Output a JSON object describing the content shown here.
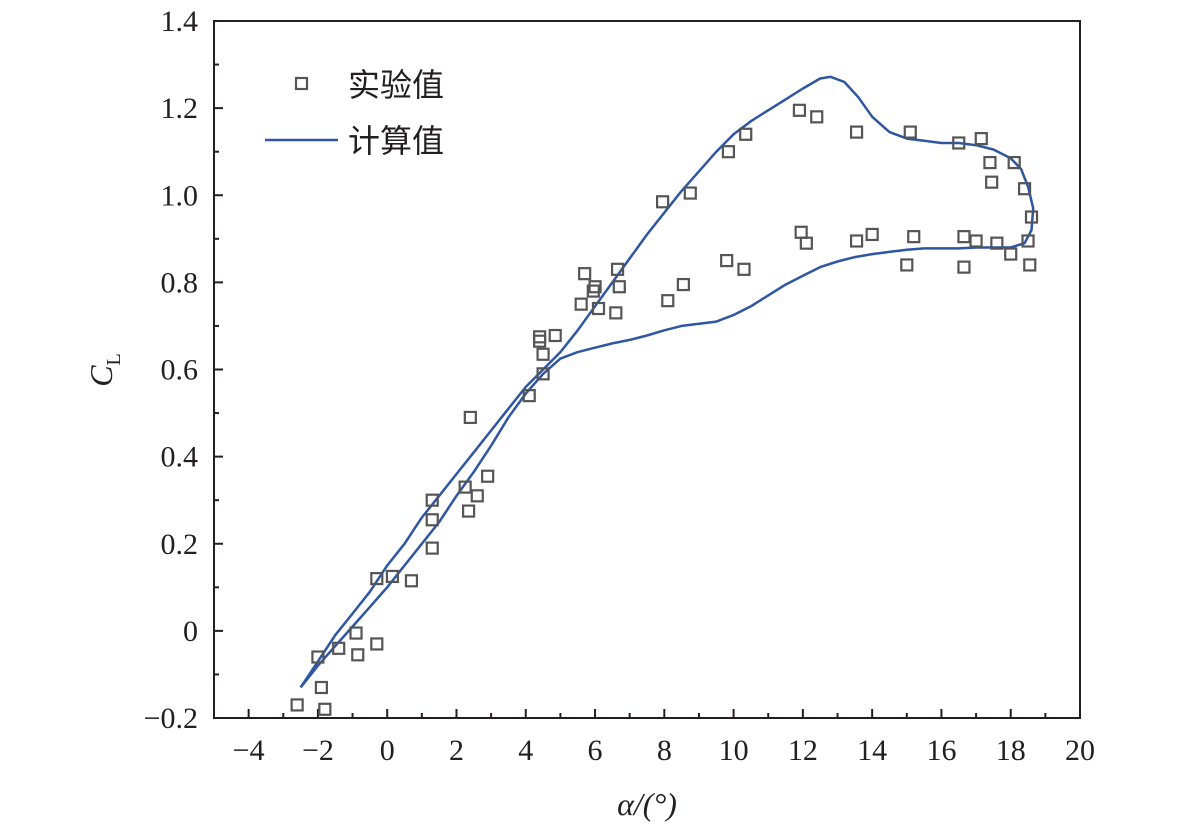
{
  "chart_data": {
    "type": "scatter",
    "xlabel": "α/(°)",
    "ylabel": {
      "main": "C",
      "sub": "L"
    },
    "xlim": [
      -5,
      20
    ],
    "ylim": [
      -0.2,
      1.4
    ],
    "x_ticks": [
      -4,
      -2,
      0,
      2,
      4,
      6,
      8,
      10,
      12,
      14,
      16,
      18,
      20
    ],
    "x_tick_labels": [
      "−4",
      "−2",
      "0",
      "2",
      "4",
      "6",
      "8",
      "10",
      "12",
      "14",
      "16",
      "18",
      "20"
    ],
    "y_ticks": [
      -0.2,
      0,
      0.2,
      0.4,
      0.6,
      0.8,
      1.0,
      1.2,
      1.4
    ],
    "y_tick_labels": [
      "−0.2",
      "0",
      "0.2",
      "0.4",
      "0.6",
      "0.8",
      "1.0",
      "1.2",
      "1.4"
    ],
    "grid": false,
    "legend_position": "top-left",
    "series": [
      {
        "name": "实验值",
        "kind": "scatter",
        "marker": "open-square",
        "color": "#555555",
        "points": [
          [
            -2.6,
            -0.17
          ],
          [
            -2.0,
            -0.06
          ],
          [
            -1.9,
            -0.13
          ],
          [
            -1.8,
            -0.18
          ],
          [
            -1.4,
            -0.04
          ],
          [
            -0.9,
            -0.005
          ],
          [
            -0.85,
            -0.055
          ],
          [
            -0.3,
            -0.03
          ],
          [
            -0.3,
            0.12
          ],
          [
            0.15,
            0.125
          ],
          [
            0.7,
            0.115
          ],
          [
            1.3,
            0.19
          ],
          [
            1.3,
            0.255
          ],
          [
            1.3,
            0.3
          ],
          [
            2.25,
            0.33
          ],
          [
            2.35,
            0.275
          ],
          [
            2.4,
            0.49
          ],
          [
            2.6,
            0.31
          ],
          [
            2.9,
            0.355
          ],
          [
            4.1,
            0.54
          ],
          [
            4.4,
            0.665
          ],
          [
            4.4,
            0.675
          ],
          [
            4.5,
            0.59
          ],
          [
            4.5,
            0.635
          ],
          [
            4.85,
            0.678
          ],
          [
            5.6,
            0.75
          ],
          [
            5.7,
            0.82
          ],
          [
            5.95,
            0.78
          ],
          [
            6.0,
            0.79
          ],
          [
            6.1,
            0.74
          ],
          [
            6.6,
            0.73
          ],
          [
            6.65,
            0.83
          ],
          [
            6.7,
            0.79
          ],
          [
            7.95,
            0.985
          ],
          [
            8.1,
            0.758
          ],
          [
            8.55,
            0.795
          ],
          [
            8.75,
            1.005
          ],
          [
            9.8,
            0.85
          ],
          [
            9.85,
            1.1
          ],
          [
            10.3,
            0.83
          ],
          [
            10.35,
            1.14
          ],
          [
            11.9,
            1.195
          ],
          [
            11.95,
            0.915
          ],
          [
            12.1,
            0.89
          ],
          [
            12.4,
            1.18
          ],
          [
            13.55,
            0.895
          ],
          [
            13.55,
            1.145
          ],
          [
            14.0,
            0.91
          ],
          [
            15.0,
            0.84
          ],
          [
            15.1,
            1.145
          ],
          [
            15.2,
            0.905
          ],
          [
            16.5,
            1.12
          ],
          [
            16.65,
            0.905
          ],
          [
            16.65,
            0.835
          ],
          [
            17.0,
            0.895
          ],
          [
            17.15,
            1.13
          ],
          [
            17.4,
            1.075
          ],
          [
            17.45,
            1.03
          ],
          [
            17.6,
            0.89
          ],
          [
            18.0,
            0.865
          ],
          [
            18.1,
            1.075
          ],
          [
            18.4,
            1.015
          ],
          [
            18.5,
            0.895
          ],
          [
            18.55,
            0.84
          ],
          [
            18.6,
            0.95
          ]
        ]
      },
      {
        "name": "计算值",
        "kind": "line",
        "color": "#2e56a3",
        "points": [
          [
            -2.5,
            -0.13
          ],
          [
            -2.0,
            -0.07
          ],
          [
            -1.5,
            -0.01
          ],
          [
            -1.0,
            0.04
          ],
          [
            -0.5,
            0.09
          ],
          [
            0.0,
            0.15
          ],
          [
            0.5,
            0.2
          ],
          [
            1.0,
            0.26
          ],
          [
            1.5,
            0.31
          ],
          [
            2.0,
            0.36
          ],
          [
            2.5,
            0.41
          ],
          [
            3.0,
            0.46
          ],
          [
            3.5,
            0.51
          ],
          [
            4.0,
            0.56
          ],
          [
            4.5,
            0.6
          ],
          [
            5.0,
            0.64
          ],
          [
            5.5,
            0.69
          ],
          [
            6.0,
            0.745
          ],
          [
            6.5,
            0.8
          ],
          [
            7.0,
            0.855
          ],
          [
            7.5,
            0.91
          ],
          [
            8.0,
            0.96
          ],
          [
            8.5,
            1.01
          ],
          [
            9.0,
            1.055
          ],
          [
            9.5,
            1.1
          ],
          [
            10.0,
            1.14
          ],
          [
            10.5,
            1.17
          ],
          [
            11.0,
            1.195
          ],
          [
            11.5,
            1.22
          ],
          [
            12.0,
            1.245
          ],
          [
            12.5,
            1.268
          ],
          [
            12.8,
            1.272
          ],
          [
            13.2,
            1.26
          ],
          [
            13.6,
            1.225
          ],
          [
            14.0,
            1.18
          ],
          [
            14.5,
            1.145
          ],
          [
            15.0,
            1.13
          ],
          [
            15.5,
            1.125
          ],
          [
            16.0,
            1.12
          ],
          [
            16.5,
            1.12
          ],
          [
            17.0,
            1.115
          ],
          [
            17.5,
            1.105
          ],
          [
            18.0,
            1.085
          ],
          [
            18.3,
            1.06
          ],
          [
            18.5,
            1.02
          ],
          [
            18.65,
            0.97
          ],
          [
            18.6,
            0.92
          ],
          [
            18.4,
            0.89
          ],
          [
            18.0,
            0.88
          ],
          [
            17.5,
            0.88
          ],
          [
            17.0,
            0.88
          ],
          [
            16.5,
            0.878
          ],
          [
            16.0,
            0.878
          ],
          [
            15.5,
            0.878
          ],
          [
            15.0,
            0.875
          ],
          [
            14.5,
            0.87
          ],
          [
            14.0,
            0.865
          ],
          [
            13.5,
            0.858
          ],
          [
            13.0,
            0.848
          ],
          [
            12.5,
            0.835
          ],
          [
            12.0,
            0.815
          ],
          [
            11.5,
            0.795
          ],
          [
            11.0,
            0.77
          ],
          [
            10.5,
            0.745
          ],
          [
            10.0,
            0.725
          ],
          [
            9.5,
            0.71
          ],
          [
            9.0,
            0.705
          ],
          [
            8.5,
            0.7
          ],
          [
            8.0,
            0.69
          ],
          [
            7.5,
            0.678
          ],
          [
            7.0,
            0.668
          ],
          [
            6.5,
            0.66
          ],
          [
            6.0,
            0.65
          ],
          [
            5.5,
            0.64
          ],
          [
            5.0,
            0.625
          ],
          [
            4.5,
            0.59
          ],
          [
            4.0,
            0.545
          ],
          [
            3.5,
            0.49
          ],
          [
            3.0,
            0.425
          ],
          [
            2.5,
            0.365
          ],
          [
            2.0,
            0.31
          ],
          [
            1.5,
            0.25
          ],
          [
            1.0,
            0.2
          ],
          [
            0.5,
            0.15
          ],
          [
            0.0,
            0.1
          ],
          [
            -0.5,
            0.055
          ],
          [
            -1.0,
            0.01
          ],
          [
            -1.5,
            -0.035
          ],
          [
            -2.0,
            -0.08
          ],
          [
            -2.5,
            -0.13
          ]
        ]
      }
    ]
  }
}
